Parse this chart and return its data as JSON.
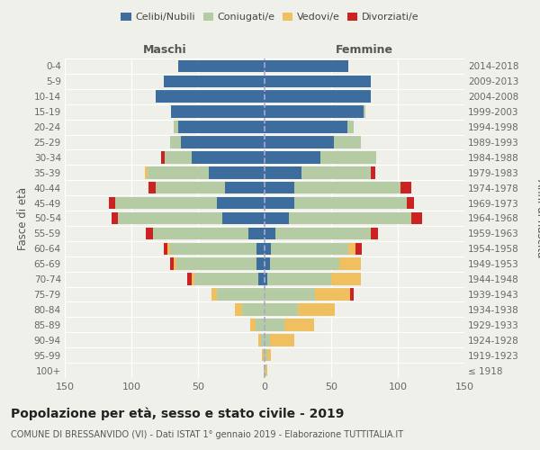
{
  "age_groups": [
    "100+",
    "95-99",
    "90-94",
    "85-89",
    "80-84",
    "75-79",
    "70-74",
    "65-69",
    "60-64",
    "55-59",
    "50-54",
    "45-49",
    "40-44",
    "35-39",
    "30-34",
    "25-29",
    "20-24",
    "15-19",
    "10-14",
    "5-9",
    "0-4"
  ],
  "birth_years": [
    "≤ 1918",
    "1919-1923",
    "1924-1928",
    "1929-1933",
    "1934-1938",
    "1939-1943",
    "1944-1948",
    "1949-1953",
    "1954-1958",
    "1959-1963",
    "1964-1968",
    "1969-1973",
    "1974-1978",
    "1979-1983",
    "1984-1988",
    "1989-1993",
    "1994-1998",
    "1999-2003",
    "2004-2008",
    "2009-2013",
    "2014-2018"
  ],
  "males": {
    "celibe": [
      0,
      0,
      0,
      0,
      0,
      0,
      5,
      6,
      6,
      12,
      32,
      36,
      30,
      42,
      55,
      63,
      65,
      70,
      82,
      76,
      65
    ],
    "coniugato": [
      1,
      1,
      3,
      7,
      17,
      36,
      48,
      60,
      65,
      72,
      78,
      76,
      52,
      46,
      20,
      8,
      3,
      0,
      0,
      0,
      0
    ],
    "vedovo": [
      0,
      1,
      2,
      4,
      5,
      4,
      2,
      2,
      2,
      0,
      0,
      0,
      0,
      2,
      0,
      0,
      0,
      0,
      0,
      0,
      0
    ],
    "divorziato": [
      0,
      0,
      0,
      0,
      0,
      0,
      3,
      3,
      3,
      5,
      5,
      5,
      5,
      0,
      3,
      0,
      0,
      0,
      0,
      0,
      0
    ]
  },
  "females": {
    "nubile": [
      0,
      0,
      0,
      0,
      0,
      0,
      2,
      4,
      5,
      8,
      18,
      22,
      22,
      28,
      42,
      52,
      62,
      74,
      80,
      80,
      63
    ],
    "coniugata": [
      1,
      2,
      4,
      15,
      25,
      38,
      48,
      52,
      58,
      72,
      92,
      85,
      80,
      52,
      42,
      20,
      5,
      2,
      0,
      0,
      0
    ],
    "vedova": [
      1,
      3,
      18,
      22,
      28,
      26,
      22,
      16,
      5,
      0,
      0,
      0,
      0,
      0,
      0,
      0,
      0,
      0,
      0,
      0,
      0
    ],
    "divorziata": [
      0,
      0,
      0,
      0,
      0,
      3,
      0,
      0,
      5,
      5,
      8,
      5,
      8,
      3,
      0,
      0,
      0,
      0,
      0,
      0,
      0
    ]
  },
  "colors": {
    "celibe": "#3d6d9e",
    "coniugato": "#b5cba3",
    "vedovo": "#f0c060",
    "divorziato": "#cc2222"
  },
  "title": "Popolazione per età, sesso e stato civile - 2019",
  "subtitle": "COMUNE DI BRESSANVIDO (VI) - Dati ISTAT 1° gennaio 2019 - Elaborazione TUTTITALIA.IT",
  "xlabel_left": "Maschi",
  "xlabel_right": "Femmine",
  "ylabel_left": "Fasce di età",
  "ylabel_right": "Anni di nascita",
  "xlim": 150,
  "legend_labels": [
    "Celibi/Nubili",
    "Coniugati/e",
    "Vedovi/e",
    "Divorziati/e"
  ],
  "bg_color": "#f0f0ea",
  "bar_height": 0.8
}
